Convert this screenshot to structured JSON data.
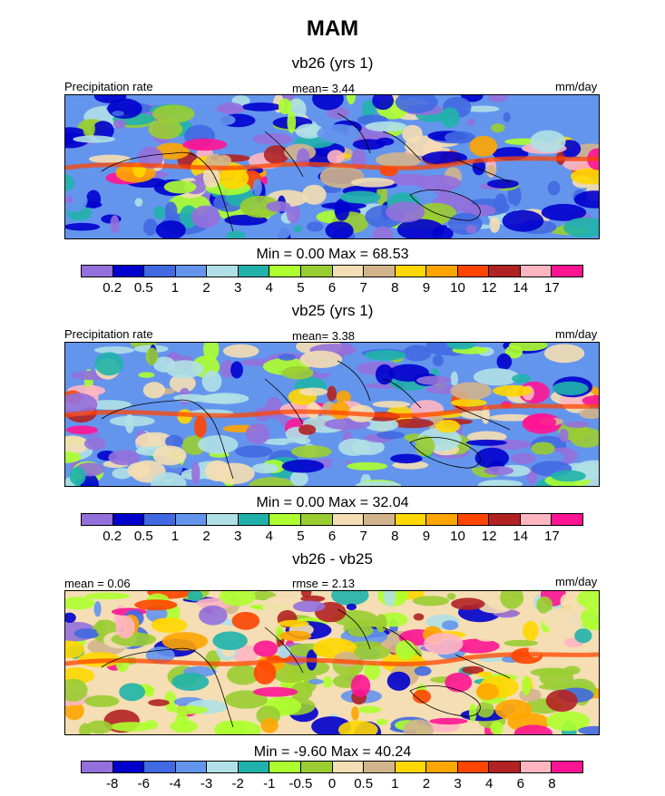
{
  "figure": {
    "title": "MAM"
  },
  "chart_data": [
    {
      "type": "heatmap",
      "title": "vb26 (yrs 1)",
      "left_label": "Precipitation rate",
      "center_label": "mean=   3.44",
      "right_label": "mm/day",
      "stats": "Min =   0.00 Max =  68.53",
      "colorbar": {
        "colors": [
          "#9370DB",
          "#0000CD",
          "#4169E1",
          "#6495ED",
          "#B0E0E6",
          "#20B2AA",
          "#ADFF2F",
          "#9ACD32",
          "#F5DEB3",
          "#D2B48C",
          "#FFD700",
          "#FFA500",
          "#FF4500",
          "#B22222",
          "#FFB6C1",
          "#FF1493"
        ],
        "labels": [
          "0.2",
          "0.5",
          "1",
          "2",
          "3",
          "4",
          "5",
          "6",
          "7",
          "8",
          "9",
          "10",
          "12",
          "14",
          "17"
        ]
      },
      "field": {
        "base": 3.4,
        "background": [
          "#6495ED",
          "#9370DB",
          "#0000CD"
        ]
      }
    },
    {
      "type": "heatmap",
      "title": "vb25 (yrs 1)",
      "left_label": "Precipitation rate",
      "center_label": "mean=   3.38",
      "right_label": "mm/day",
      "stats": "Min =   0.00 Max =  32.04",
      "colorbar": {
        "colors": [
          "#9370DB",
          "#0000CD",
          "#4169E1",
          "#6495ED",
          "#B0E0E6",
          "#20B2AA",
          "#ADFF2F",
          "#9ACD32",
          "#F5DEB3",
          "#D2B48C",
          "#FFD700",
          "#FFA500",
          "#FF4500",
          "#B22222",
          "#FFB6C1",
          "#FF1493"
        ],
        "labels": [
          "0.2",
          "0.5",
          "1",
          "2",
          "3",
          "4",
          "5",
          "6",
          "7",
          "8",
          "9",
          "10",
          "12",
          "14",
          "17"
        ]
      },
      "field": {
        "base": 3.4,
        "background": [
          "#6495ED",
          "#9370DB",
          "#B0E0E6"
        ]
      }
    },
    {
      "type": "heatmap",
      "title": "vb26 - vb25",
      "left_label": "mean =   0.06",
      "center_label": "rmse =   2.13",
      "right_label": "mm/day",
      "stats": "Min =  -9.60 Max =  40.24",
      "colorbar": {
        "colors": [
          "#9370DB",
          "#0000CD",
          "#4169E1",
          "#6495ED",
          "#B0E0E6",
          "#20B2AA",
          "#ADFF2F",
          "#9ACD32",
          "#F5DEB3",
          "#D2B48C",
          "#FFD700",
          "#FFA500",
          "#FF4500",
          "#B22222",
          "#FFB6C1",
          "#FF1493"
        ],
        "labels": [
          "-8",
          "-6",
          "-4",
          "-3",
          "-2",
          "-1",
          "-0.5",
          "0",
          "0.5",
          "1",
          "2",
          "3",
          "4",
          "6",
          "8"
        ]
      },
      "field": {
        "base": 0.06,
        "background": [
          "#F5DEB3",
          "#9ACD32",
          "#ADFF2F"
        ]
      }
    }
  ]
}
